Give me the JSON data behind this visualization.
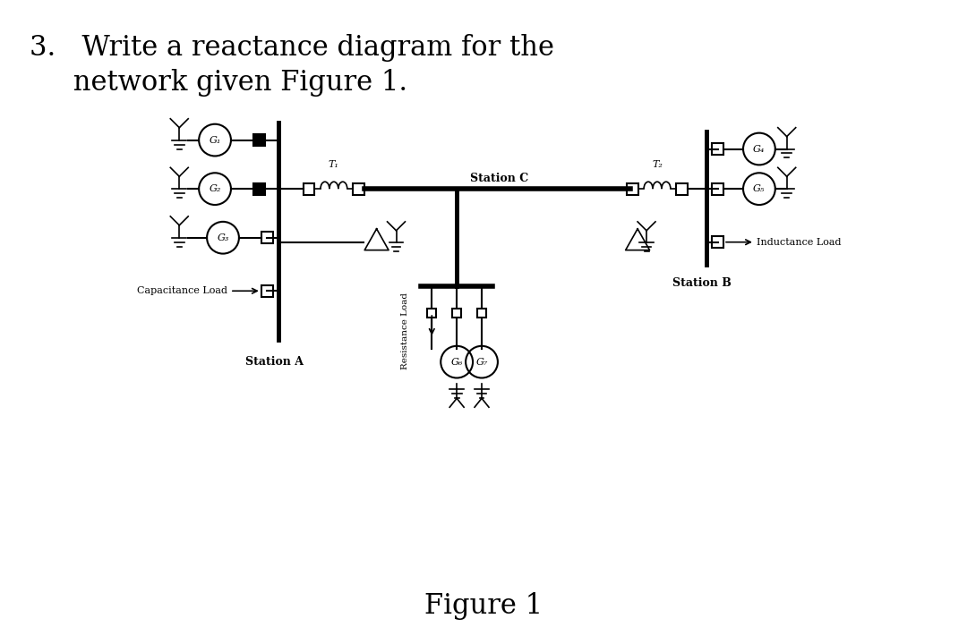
{
  "title_line1": "3.   Write a reactance diagram for the",
  "title_line2": "     network given Figure 1.",
  "figure_caption": "Figure 1",
  "bg_color": "#ffffff",
  "line_color": "#000000",
  "station_a_label": "Station A",
  "station_b_label": "Station B",
  "station_c_label": "Station C",
  "inductance_load_label": "Inductance Load",
  "capacitance_load_label": "Capacitance Load",
  "resistance_load_label": "Resistance Load",
  "g_labels": [
    "G₁",
    "G₂",
    "G₃",
    "G₄",
    "G₅",
    "G₆",
    "G₇"
  ],
  "t_labels": [
    "T₁",
    "T₂"
  ]
}
